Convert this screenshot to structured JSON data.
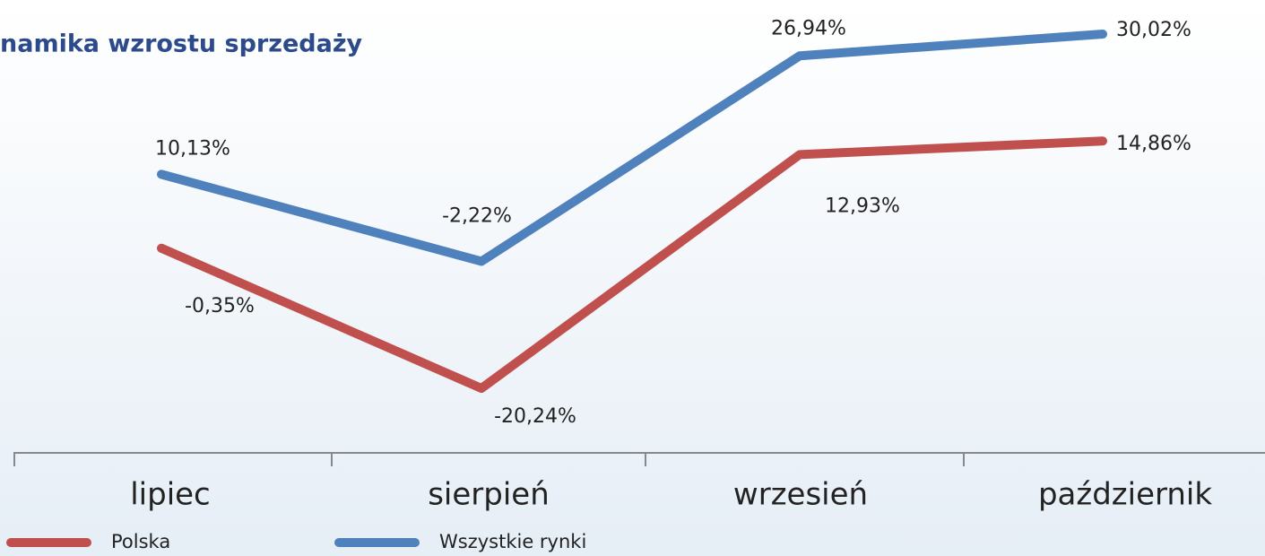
{
  "chart_data": {
    "type": "line",
    "title": "namika wzrostu sprzedaży",
    "categories": [
      "lipiec",
      "sierpień",
      "wrzesień",
      "październik"
    ],
    "series": [
      {
        "name": "Polska",
        "color": "#c0504d",
        "values": [
          -0.35,
          -20.24,
          12.93,
          14.86
        ],
        "value_labels": [
          "-0,35%",
          "-20,24%",
          "12,93%",
          "14,86%"
        ]
      },
      {
        "name": "Wszystkie rynki",
        "color": "#4f81bd",
        "values": [
          10.13,
          -2.22,
          26.94,
          30.02
        ],
        "value_labels": [
          "10,13%",
          "-2,22%",
          "26,94%",
          "30,02%"
        ]
      }
    ]
  }
}
